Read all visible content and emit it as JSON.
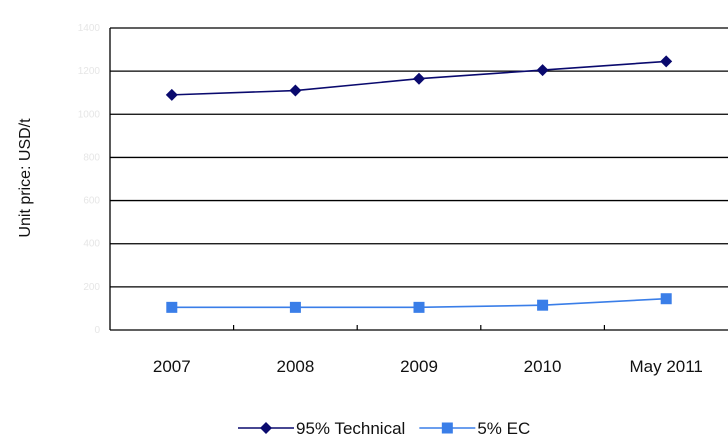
{
  "chart_data": {
    "type": "line",
    "title": "",
    "xlabel": "",
    "ylabel": "Unit price: USD/t",
    "categories": [
      "2007",
      "2008",
      "2009",
      "2010",
      "May 2011"
    ],
    "ylim": [
      0,
      1400
    ],
    "yticks": [
      0,
      200,
      400,
      600,
      800,
      1000,
      1200,
      1400
    ],
    "grid": true,
    "legend": "bottom",
    "series": [
      {
        "name": "95% Technical",
        "values": [
          1090,
          1110,
          1165,
          1205,
          1245
        ],
        "color": "#0a0a6e",
        "marker": "diamond"
      },
      {
        "name": "5% EC",
        "values": [
          105,
          105,
          105,
          115,
          145
        ],
        "color": "#3a7ee8",
        "marker": "square"
      }
    ]
  }
}
